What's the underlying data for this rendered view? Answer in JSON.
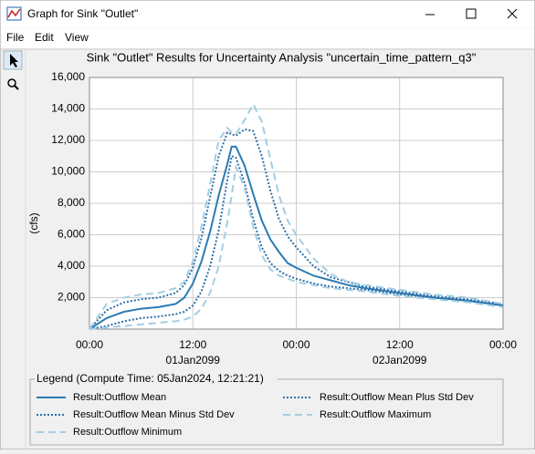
{
  "window": {
    "title": "Graph for Sink \"Outlet\"",
    "menu": [
      "File",
      "Edit",
      "View"
    ]
  },
  "chart_data": {
    "type": "line",
    "title": "Sink \"Outlet\" Results for Uncertainty Analysis \"uncertain_time_pattern_q3\"",
    "y_label": "(cfs)",
    "x": [
      0,
      2,
      4,
      6,
      8,
      10,
      11,
      12,
      13,
      14,
      15,
      16,
      16.5,
      17,
      18,
      19,
      20,
      21,
      22,
      23,
      24,
      26,
      28,
      30,
      32,
      36,
      40,
      44,
      48
    ],
    "xlim": [
      0,
      48
    ],
    "xticks": [
      {
        "value": 0,
        "label": "00:00"
      },
      {
        "value": 12,
        "label": "12:00"
      },
      {
        "value": 24,
        "label": "00:00"
      },
      {
        "value": 36,
        "label": "12:00"
      },
      {
        "value": 48,
        "label": "00:00"
      }
    ],
    "x_date_labels": [
      {
        "value": 12,
        "label": "01Jan2099"
      },
      {
        "value": 36,
        "label": "02Jan2099"
      }
    ],
    "ylim": [
      0,
      16000
    ],
    "yticks": [
      {
        "value": 2000,
        "label": "2,000"
      },
      {
        "value": 4000,
        "label": "4,000"
      },
      {
        "value": 6000,
        "label": "6,000"
      },
      {
        "value": 8000,
        "label": "8,000"
      },
      {
        "value": 10000,
        "label": "10,000"
      },
      {
        "value": 12000,
        "label": "12,000"
      },
      {
        "value": 14000,
        "label": "14,000"
      },
      {
        "value": 16000,
        "label": "16,000"
      }
    ],
    "grid": true,
    "legend_title": "Legend (Compute Time: 05Jan2024, 12:21:21)",
    "series": [
      {
        "name": "Result:Outflow Mean",
        "color": "#2b7bb3",
        "style": "solid",
        "values": [
          0,
          700,
          1100,
          1300,
          1400,
          1600,
          2000,
          2900,
          4300,
          6200,
          8500,
          10500,
          11600,
          11600,
          10400,
          8600,
          6900,
          5700,
          4900,
          4200,
          3900,
          3400,
          3100,
          2800,
          2600,
          2300,
          2000,
          1800,
          1500
        ]
      },
      {
        "name": "Result:Outflow Mean Plus Std Dev",
        "color": "#2d6fa8",
        "style": "dotted",
        "values": [
          0,
          1200,
          1700,
          1900,
          2000,
          2300,
          2800,
          3900,
          5800,
          8400,
          11000,
          12500,
          12400,
          12300,
          12700,
          12600,
          11000,
          8800,
          7000,
          5900,
          5200,
          4000,
          3300,
          3000,
          2700,
          2400,
          2100,
          1900,
          1600
        ]
      },
      {
        "name": "Result:Outflow Mean Minus Std Dev",
        "color": "#2d6fa8",
        "style": "dotted",
        "values": [
          0,
          200,
          500,
          700,
          800,
          950,
          1100,
          1500,
          2400,
          4000,
          6300,
          9500,
          11000,
          10900,
          9300,
          7000,
          5200,
          4200,
          3700,
          3400,
          3200,
          2900,
          2700,
          2600,
          2500,
          2200,
          2000,
          1800,
          1500
        ]
      },
      {
        "name": "Result:Outflow Maximum",
        "color": "#a3cde4",
        "style": "dashed",
        "values": [
          0,
          1600,
          2000,
          2200,
          2300,
          2600,
          3000,
          4300,
          6500,
          9200,
          12000,
          12800,
          12500,
          12400,
          13300,
          14300,
          13200,
          10800,
          8500,
          6900,
          6000,
          4500,
          3500,
          3000,
          2800,
          2500,
          2200,
          2000,
          1600
        ]
      },
      {
        "name": "Result:Outflow Minimum",
        "color": "#a3cde4",
        "style": "dashed",
        "values": [
          0,
          100,
          200,
          300,
          400,
          500,
          600,
          800,
          1300,
          2300,
          4000,
          6800,
          8500,
          10300,
          9000,
          6500,
          4700,
          3800,
          3400,
          3200,
          3000,
          2800,
          2600,
          2500,
          2400,
          2100,
          1900,
          1700,
          1400
        ]
      }
    ]
  }
}
